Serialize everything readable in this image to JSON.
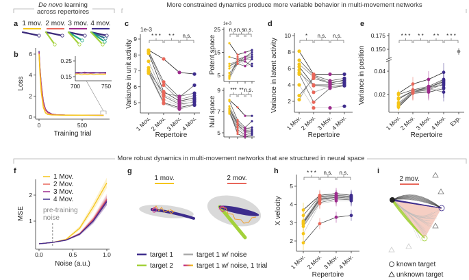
{
  "headers": {
    "top_left_italic": "De novo",
    "top_left_rest": " learning",
    "top_left_line2": "across repertoires",
    "top_right": "More constrained dynamics produce more variable behavior in multi-movement networks",
    "bottom": "More robust dynamics in multi-movement networks that are structured in neural space"
  },
  "panel_letters": [
    "a",
    "b",
    "c",
    "d",
    "e",
    "f",
    "g",
    "h",
    "i"
  ],
  "colors": {
    "1 Mov.": "#f5c518",
    "2 Mov.": "#e8675a",
    "3 Mov.": "#9c2a8c",
    "4 Mov.": "#3d2c8c",
    "Exp.": "#888888",
    "target_2": "#a3d13a",
    "fan": "#f3c5b8"
  },
  "diagrams": {
    "a": {
      "labels": [
        "1 mov.",
        "2 mov.",
        "3 mov.",
        "4 mov."
      ],
      "target_counts": [
        1,
        2,
        3,
        4
      ]
    },
    "g": {
      "labels": [
        "1 mov.",
        "2 mov."
      ],
      "legend": [
        "target 1",
        "target 2",
        "target 1 w/ noise",
        "target 1 w/ noise, 1 trial"
      ]
    },
    "i": {
      "label": "2 mov.",
      "legend": [
        "known target",
        "unknown target"
      ],
      "known_marker": "circle-icon",
      "unknown_marker": "triangle-icon"
    }
  },
  "chart_data": [
    {
      "panel": "b",
      "type": "line",
      "xlabel": "Training trial",
      "ylabel": "Loss",
      "xticks": [
        0,
        500
      ],
      "yticks": [
        0,
        2,
        4,
        6
      ],
      "xlim": [
        0,
        750
      ],
      "ylim": [
        0,
        6.5
      ],
      "x": [
        0,
        10,
        25,
        50,
        75,
        100,
        150,
        200,
        300,
        500,
        750
      ],
      "series": [
        {
          "name": "1 Mov.",
          "values": [
            6.0,
            4.2,
            2.4,
            0.9,
            0.4,
            0.25,
            0.2,
            0.19,
            0.18,
            0.18,
            0.17
          ]
        },
        {
          "name": "2 Mov.",
          "values": [
            6.1,
            4.6,
            3.0,
            1.3,
            0.65,
            0.4,
            0.25,
            0.21,
            0.19,
            0.18,
            0.17
          ]
        },
        {
          "name": "3 Mov.",
          "values": [
            6.2,
            4.7,
            3.1,
            1.4,
            0.7,
            0.45,
            0.27,
            0.22,
            0.19,
            0.18,
            0.17
          ]
        },
        {
          "name": "4 Mov.",
          "values": [
            6.3,
            4.8,
            3.2,
            1.5,
            0.75,
            0.5,
            0.28,
            0.22,
            0.19,
            0.18,
            0.17
          ]
        }
      ],
      "inset": {
        "xticks": [
          700,
          750
        ],
        "yticks": [
          0.15,
          0.25
        ],
        "xlim": [
          700,
          750
        ],
        "x": [
          700,
          705,
          710,
          715,
          720,
          725,
          730,
          735,
          740,
          745,
          750
        ],
        "series": [
          {
            "name": "1 Mov.",
            "values": [
              0.165,
              0.168,
              0.162,
              0.166,
              0.164,
              0.167,
              0.163,
              0.166,
              0.165,
              0.164,
              0.166
            ]
          },
          {
            "name": "2 Mov.",
            "values": [
              0.172,
              0.17,
              0.174,
              0.171,
              0.173,
              0.17,
              0.172,
              0.174,
              0.171,
              0.172,
              0.17
            ]
          },
          {
            "name": "3 Mov.",
            "values": [
              0.176,
              0.178,
              0.175,
              0.179,
              0.176,
              0.177,
              0.178,
              0.175,
              0.177,
              0.176,
              0.178
            ]
          },
          {
            "name": "4 Mov.",
            "values": [
              0.174,
              0.175,
              0.173,
              0.176,
              0.174,
              0.175,
              0.173,
              0.175,
              0.174,
              0.176,
              0.174
            ]
          }
        ]
      }
    },
    {
      "panel": "c",
      "type": "scatter",
      "ylabel": "Variance in unit activity",
      "xlabel": "Repertoire",
      "exponent": "1e-3",
      "categories": [
        "1 Mov.",
        "2 Mov.",
        "3 Mov.",
        "4 Mov."
      ],
      "yticks": [
        5,
        6,
        7,
        8,
        9
      ],
      "significance": [
        "* * *",
        "* *",
        "n.s."
      ],
      "values": [
        [
          8.3,
          8.25,
          8.2,
          8.1,
          7.6,
          7.2,
          7.05,
          6.95,
          6.85,
          7.0
        ],
        [
          7.75,
          6.3,
          6.1,
          5.7,
          5.5,
          5.4,
          5.2,
          5.0,
          4.95,
          5.6
        ],
        [
          6.9,
          5.35,
          5.2,
          5.1,
          5.0,
          4.9,
          4.8,
          4.7,
          4.6,
          5.4
        ],
        [
          6.8,
          6.1,
          5.45,
          5.3,
          5.2,
          5.05,
          5.1,
          4.9,
          4.85,
          5.6
        ]
      ]
    },
    {
      "panel": "c-potent",
      "type": "scatter",
      "ylabel": "Potent space",
      "exponent": "1e-3",
      "categories": [
        "1 Mov.",
        "2 Mov.",
        "3 Mov.",
        "4 Mov."
      ],
      "yticks": [
        5,
        15,
        25
      ],
      "significance": [
        "n.s.",
        "n.s.",
        "n.s."
      ],
      "values": [
        [
          19,
          13,
          10,
          9,
          8,
          6,
          5,
          4,
          3.5,
          4.5
        ],
        [
          14,
          12,
          11,
          11,
          10,
          10,
          13,
          12,
          10,
          11
        ],
        [
          15,
          13,
          13,
          12,
          12,
          9,
          9,
          11,
          12,
          13
        ],
        [
          16,
          15,
          14,
          13,
          13,
          12,
          10,
          9,
          12,
          13
        ]
      ]
    },
    {
      "panel": "c-null",
      "type": "scatter",
      "ylabel": "Null space",
      "categories": [
        "1 Mov.",
        "2 Mov.",
        "3 Mov.",
        "4 Mov."
      ],
      "yticks": [
        5,
        7,
        9
      ],
      "significance": [
        "***",
        "**",
        "n.s."
      ],
      "values": [
        [
          8.1,
          8.0,
          7.5,
          7.2,
          7.0,
          6.9,
          6.8,
          7.1,
          7.0,
          7.3
        ],
        [
          7.4,
          6.2,
          6.0,
          5.8,
          5.5,
          5.3,
          5.1,
          4.9,
          5.6,
          5.9
        ],
        [
          6.6,
          5.5,
          5.3,
          5.1,
          5.0,
          4.8,
          4.7,
          4.6,
          5.2,
          5.4
        ],
        [
          6.6,
          6.1,
          5.5,
          5.2,
          5.1,
          5.0,
          4.9,
          4.8,
          5.3,
          5.5
        ]
      ]
    },
    {
      "panel": "d",
      "type": "scatter",
      "ylabel": "Variance in latent activity",
      "xlabel": "Repertoire",
      "categories": [
        "1 Mov.",
        "2 Mov.",
        "3 Mov.",
        "4 Mov."
      ],
      "yticks": [
        2,
        4,
        6,
        8,
        10
      ],
      "significance": [
        "*",
        "n.s.",
        "n.s."
      ],
      "values": [
        [
          8.1,
          7.0,
          6.5,
          6.2,
          5.8,
          5.3,
          4.0,
          2.7,
          2.2,
          5.5
        ],
        [
          5.3,
          5.2,
          5.0,
          4.0,
          3.1,
          1.9,
          1.2,
          4.8,
          5.1,
          3.9
        ],
        [
          5.3,
          4.5,
          4.3,
          4.0,
          3.8,
          3.6,
          1.2,
          4.2,
          4.1,
          3.8
        ],
        [
          5.3,
          4.8,
          4.5,
          4.3,
          4.0,
          3.9,
          1.4,
          4.6,
          4.2,
          3.9
        ]
      ]
    },
    {
      "panel": "e",
      "type": "scatter",
      "ylabel": "Variance in position",
      "xlabel": "Repertoire",
      "categories": [
        "1 Mov.",
        "2 Mov.",
        "3 Mov.",
        "4 Mov.",
        "Exp."
      ],
      "yticks": [
        0.02,
        0.04,
        0.15,
        0.175
      ],
      "ytick_labels": [
        "0.02",
        "0.04",
        "0.150",
        "0.175"
      ],
      "broken_axis": true,
      "significance": [
        "* * *",
        "* *",
        "* *",
        "* * *"
      ],
      "values": [
        [
          0.021,
          0.02,
          0.017,
          0.016,
          0.013,
          0.011,
          0.01,
          0.009,
          0.012,
          0.01
        ],
        [
          0.029,
          0.024,
          0.023,
          0.023,
          0.022,
          0.022,
          0.021,
          0.021,
          0.023,
          0.022
        ],
        [
          0.033,
          0.027,
          0.026,
          0.026,
          0.025,
          0.024,
          0.023,
          0.022,
          0.025,
          0.026
        ],
        [
          0.039,
          0.033,
          0.032,
          0.031,
          0.03,
          0.029,
          0.026,
          0.025,
          0.022,
          0.028
        ]
      ],
      "error": [
        0.003,
        0.006,
        0.007,
        0.008
      ],
      "experiment": {
        "value": 0.146,
        "error": 0.006
      }
    },
    {
      "panel": "f",
      "type": "line",
      "xlabel": "Noise (a.u.)",
      "ylabel": "MSE",
      "xticks": [
        0.0,
        0.5,
        1.0
      ],
      "xtick_labels": [
        "0.0",
        "0.5",
        "1.0"
      ],
      "yticks": [
        1,
        2
      ],
      "annotation": {
        "line1": "pre-training",
        "line2": "noise",
        "x": 0.2
      },
      "x": [
        0.0,
        0.2,
        0.4,
        0.6,
        0.8,
        1.0
      ],
      "series": [
        {
          "name": "1 Mov.",
          "values": [
            0.13,
            0.18,
            0.3,
            0.73,
            1.55,
            2.47
          ],
          "ci": [
            0.01,
            0.01,
            0.03,
            0.08,
            0.15,
            0.2
          ]
        },
        {
          "name": "2 Mov.",
          "values": [
            0.13,
            0.18,
            0.28,
            0.52,
            1.08,
            1.85
          ],
          "ci": [
            0.01,
            0.01,
            0.02,
            0.05,
            0.1,
            0.2
          ]
        },
        {
          "name": "3 Mov.",
          "values": [
            0.13,
            0.18,
            0.27,
            0.5,
            1.03,
            1.8
          ],
          "ci": [
            0.01,
            0.01,
            0.02,
            0.05,
            0.1,
            0.18
          ]
        },
        {
          "name": "4 Mov.",
          "values": [
            0.13,
            0.18,
            0.27,
            0.5,
            1.0,
            1.75
          ],
          "ci": [
            0.01,
            0.01,
            0.02,
            0.05,
            0.1,
            0.15
          ]
        }
      ]
    },
    {
      "panel": "h",
      "type": "scatter",
      "ylabel": "X velocity",
      "xlabel": "Repertoire",
      "categories": [
        "1 Mov.",
        "2 Mov.",
        "3 Mov.",
        "4 Mov."
      ],
      "yticks": [
        2,
        3,
        4,
        5
      ],
      "significance": [
        "* * *",
        "n.s.",
        "n.s."
      ],
      "values": [
        [
          3.7,
          3.4,
          3.05,
          3.0,
          2.9,
          2.8,
          2.4,
          1.9,
          3.1,
          2.95
        ],
        [
          4.5,
          4.45,
          4.4,
          4.3,
          4.2,
          4.1,
          4.05,
          2.95,
          4.35,
          4.25
        ],
        [
          4.6,
          4.5,
          4.5,
          4.4,
          4.35,
          4.3,
          4.2,
          3.3,
          4.45,
          4.4
        ],
        [
          4.5,
          4.45,
          4.4,
          4.35,
          4.3,
          4.25,
          4.2,
          3.4,
          4.4,
          4.35
        ]
      ],
      "error": [
        0.4,
        0.3,
        0.3,
        0.3
      ]
    }
  ]
}
